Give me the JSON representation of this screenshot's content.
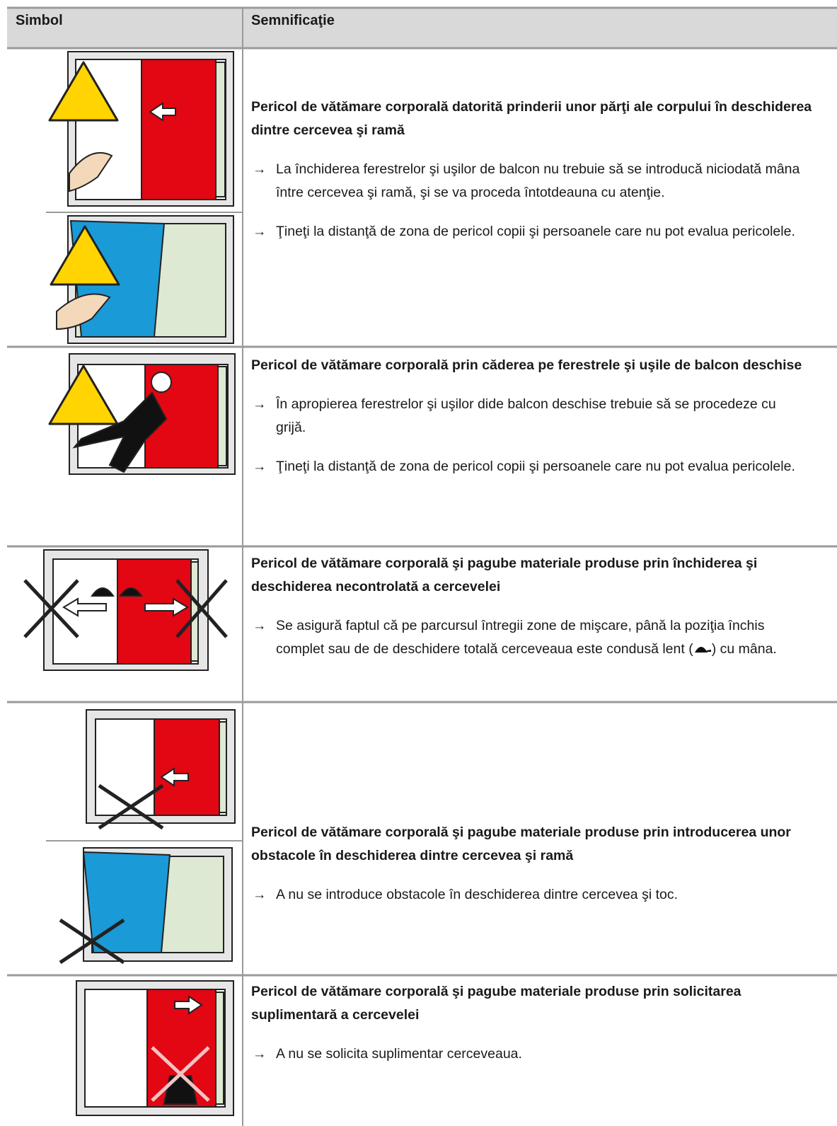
{
  "header": {
    "col1": "Simbol",
    "col2": "Semnificaţie"
  },
  "rows": [
    {
      "title": "Pericol de vătămare corporală datorită prinderii unor părţi ale corpului în deschiderea dintre cercevea şi ramă",
      "bullets": [
        "La închiderea ferestrelor şi uşilor de balcon nu trebuie să se introducă niciodată mâna între cercevea şi ramă, şi se va proceda întotdeauna cu atenţie.",
        "Ţineţi la distanţă de zona de pericol copii şi persoanele care nu pot evalua pericolele."
      ]
    },
    {
      "title": "Pericol de vătămare corporală prin căderea pe ferestrele şi uşile de balcon deschise",
      "bullets": [
        "În apropierea ferestrelor şi uşilor dide balcon deschise trebuie să se procedeze cu grijă.",
        "Ţineţi la distanţă de zona de pericol copii şi persoanele care nu pot evalua pericolele."
      ]
    },
    {
      "title": "Pericol de vătămare corporală şi pagube materiale produse prin închiderea şi deschiderea necontrolată a cercevelei",
      "bullets": [
        [
          "Se asigură faptul că pe parcursul întregii zone de mişcare, până la poziţia închis complet sau de de deschidere totală cerceveaua este condusă lent (",
          ") cu mâna."
        ]
      ]
    },
    {
      "title": "Pericol de vătămare corporală şi pagube materiale produse prin introducerea unor obstacole în deschiderea dintre cercevea şi ramă",
      "bullets": [
        "A nu se introduce obstacole în deschiderea dintre cercevea şi toc."
      ]
    },
    {
      "title": "Pericol de vătămare corporală şi pagube materiale produse prin solicitarea suplimentară a cercevelei",
      "bullets": [
        "A nu se solicita suplimentar cerceveaua."
      ]
    }
  ]
}
